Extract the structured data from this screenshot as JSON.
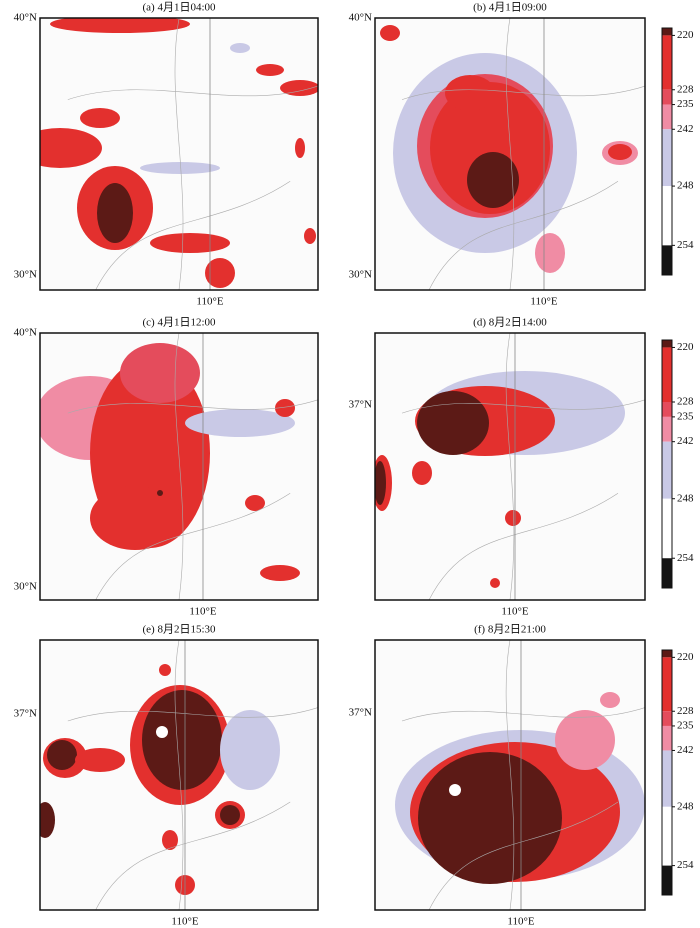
{
  "panels": [
    {
      "title": "(a) 4月1日04:00",
      "lat_labels": [
        "40°N",
        "30°N"
      ],
      "lon_label": "110°E"
    },
    {
      "title": "(b) 4月1日09:00",
      "lat_labels": [
        "40°N",
        "30°N"
      ],
      "lon_label": "110°E"
    },
    {
      "title": "(c) 4月1日12:00",
      "lat_labels": [
        "40°N",
        "30°N"
      ],
      "lon_label": "110°E"
    },
    {
      "title": "(d) 8月2日14:00",
      "lat_labels": [
        "37°N"
      ],
      "lon_label": "110°E"
    },
    {
      "title": "(e) 8月2日15:30",
      "lat_labels": [
        "37°N"
      ],
      "lon_label": "110°E"
    },
    {
      "title": "(f) 8月2日21:00",
      "lat_labels": [
        "37°N"
      ],
      "lon_label": "110°E"
    }
  ],
  "colorbar": {
    "ticks": [
      220,
      228,
      235,
      242,
      248,
      254
    ],
    "colors": [
      "#5c1a16",
      "#e3302e",
      "#e44c5c",
      "#f08ca4",
      "#c9c9e6",
      "#ffffff",
      "#141414"
    ]
  }
}
